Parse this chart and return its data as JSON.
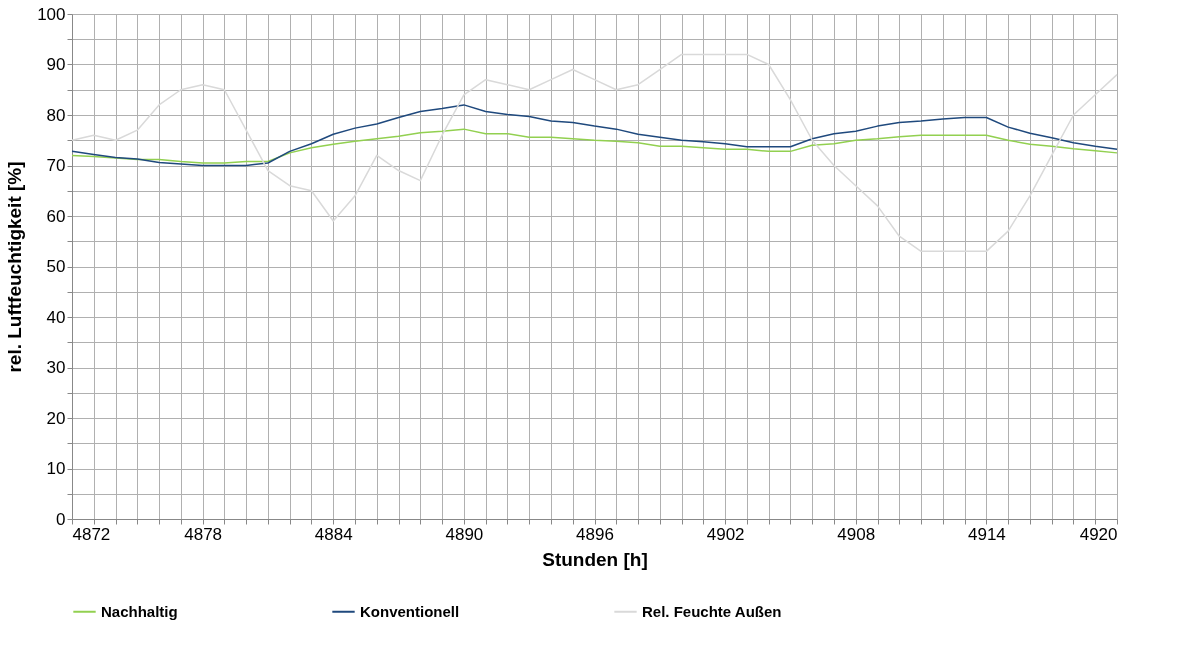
{
  "chart_data": {
    "type": "line",
    "xlabel": "Stunden [h]",
    "ylabel": "rel. Luftfeuchtigkeit  [%]",
    "x": [
      4872,
      4873,
      4874,
      4875,
      4876,
      4877,
      4878,
      4879,
      4880,
      4881,
      4882,
      4883,
      4884,
      4885,
      4886,
      4887,
      4888,
      4889,
      4890,
      4891,
      4892,
      4893,
      4894,
      4895,
      4896,
      4897,
      4898,
      4899,
      4900,
      4901,
      4902,
      4903,
      4904,
      4905,
      4906,
      4907,
      4908,
      4909,
      4910,
      4911,
      4912,
      4913,
      4914,
      4915,
      4916,
      4917,
      4918,
      4919,
      4920
    ],
    "series": [
      {
        "name": "Nachhaltig",
        "color": "#92d050",
        "values": [
          72,
          71.8,
          71.5,
          71.2,
          71.2,
          70.8,
          70.5,
          70.5,
          70.8,
          70.8,
          72.5,
          73.5,
          74.2,
          74.8,
          75.3,
          75.8,
          76.5,
          76.8,
          77.2,
          76.3,
          76.3,
          75.6,
          75.6,
          75.3,
          75,
          74.8,
          74.5,
          73.8,
          73.8,
          73.5,
          73.2,
          73.2,
          72.8,
          72.8,
          74,
          74.3,
          75,
          75.3,
          75.7,
          76,
          76,
          76,
          76,
          75,
          74.2,
          73.8,
          73.3,
          72.9,
          72.5
        ]
      },
      {
        "name": "Konventionell",
        "color": "#1f497d",
        "values": [
          72.8,
          72.2,
          71.6,
          71.3,
          70.6,
          70.3,
          70,
          70,
          70,
          70.5,
          72.8,
          74.3,
          76.2,
          77.4,
          78.2,
          79.5,
          80.7,
          81.3,
          82,
          80.7,
          80.1,
          79.7,
          78.8,
          78.5,
          77.8,
          77.2,
          76.2,
          75.6,
          75,
          74.7,
          74.3,
          73.7,
          73.7,
          73.7,
          75.3,
          76.3,
          76.8,
          77.8,
          78.5,
          78.8,
          79.2,
          79.5,
          79.5,
          77.6,
          76.4,
          75.5,
          74.5,
          73.8,
          73.2
        ]
      },
      {
        "name": "Rel. Feuchte Außen",
        "color": "#d9d9d9",
        "values": [
          75,
          76,
          75,
          77,
          82,
          85,
          86,
          85,
          77,
          69,
          66,
          65,
          59,
          64,
          72,
          69,
          67,
          76,
          84,
          87,
          86,
          85,
          87,
          89,
          87,
          85,
          86,
          89,
          92,
          92,
          92,
          92,
          90,
          83,
          75,
          70,
          66,
          62,
          56,
          53,
          53,
          53,
          53,
          57,
          64,
          72,
          80,
          84,
          88
        ]
      }
    ],
    "xlim": [
      4872,
      4920
    ],
    "xticks": [
      4872,
      {
        "value": 4873,
        "label": null
      },
      {
        "value": 4874,
        "label": null
      },
      {
        "value": 4875,
        "label": null
      },
      {
        "value": 4876,
        "label": null
      },
      {
        "value": 4877,
        "label": null
      },
      4878,
      {
        "value": 4879,
        "label": null
      },
      {
        "value": 4880,
        "label": null
      },
      {
        "value": 4881,
        "label": null
      },
      {
        "value": 4882,
        "label": null
      },
      {
        "value": 4883,
        "label": null
      },
      4884,
      {
        "value": 4885,
        "label": null
      },
      {
        "value": 4886,
        "label": null
      },
      {
        "value": 4887,
        "label": null
      },
      {
        "value": 4888,
        "label": null
      },
      {
        "value": 4889,
        "label": null
      },
      4890,
      {
        "value": 4891,
        "label": null
      },
      {
        "value": 4892,
        "label": null
      },
      {
        "value": 4893,
        "label": null
      },
      {
        "value": 4894,
        "label": null
      },
      {
        "value": 4895,
        "label": null
      },
      4896,
      {
        "value": 4897,
        "label": null
      },
      {
        "value": 4898,
        "label": null
      },
      {
        "value": 4899,
        "label": null
      },
      {
        "value": 4900,
        "label": null
      },
      {
        "value": 4901,
        "label": null
      },
      4902,
      {
        "value": 4903,
        "label": null
      },
      {
        "value": 4904,
        "label": null
      },
      {
        "value": 4905,
        "label": null
      },
      {
        "value": 4906,
        "label": null
      },
      {
        "value": 4907,
        "label": null
      },
      4908,
      {
        "value": 4909,
        "label": null
      },
      {
        "value": 4910,
        "label": null
      },
      {
        "value": 4911,
        "label": null
      },
      {
        "value": 4912,
        "label": null
      },
      {
        "value": 4913,
        "label": null
      },
      4914,
      {
        "value": 4915,
        "label": null
      },
      {
        "value": 4916,
        "label": null
      },
      {
        "value": 4917,
        "label": null
      },
      {
        "value": 4918,
        "label": null
      },
      {
        "value": 4919,
        "label": null
      },
      4920
    ],
    "ylim": [
      0,
      100
    ],
    "yticks": [
      0,
      {
        "value": 5,
        "label": null
      },
      10,
      {
        "value": 15,
        "label": null
      },
      20,
      {
        "value": 25,
        "label": null
      },
      30,
      {
        "value": 35,
        "label": null
      },
      40,
      {
        "value": 45,
        "label": null
      },
      50,
      {
        "value": 55,
        "label": null
      },
      60,
      {
        "value": 65,
        "label": null
      },
      70,
      {
        "value": 75,
        "label": null
      },
      80,
      {
        "value": 85,
        "label": null
      },
      90,
      {
        "value": 95,
        "label": null
      },
      100
    ],
    "grid": true,
    "legend": "bottom",
    "marker": "none",
    "line_style": "solid"
  }
}
